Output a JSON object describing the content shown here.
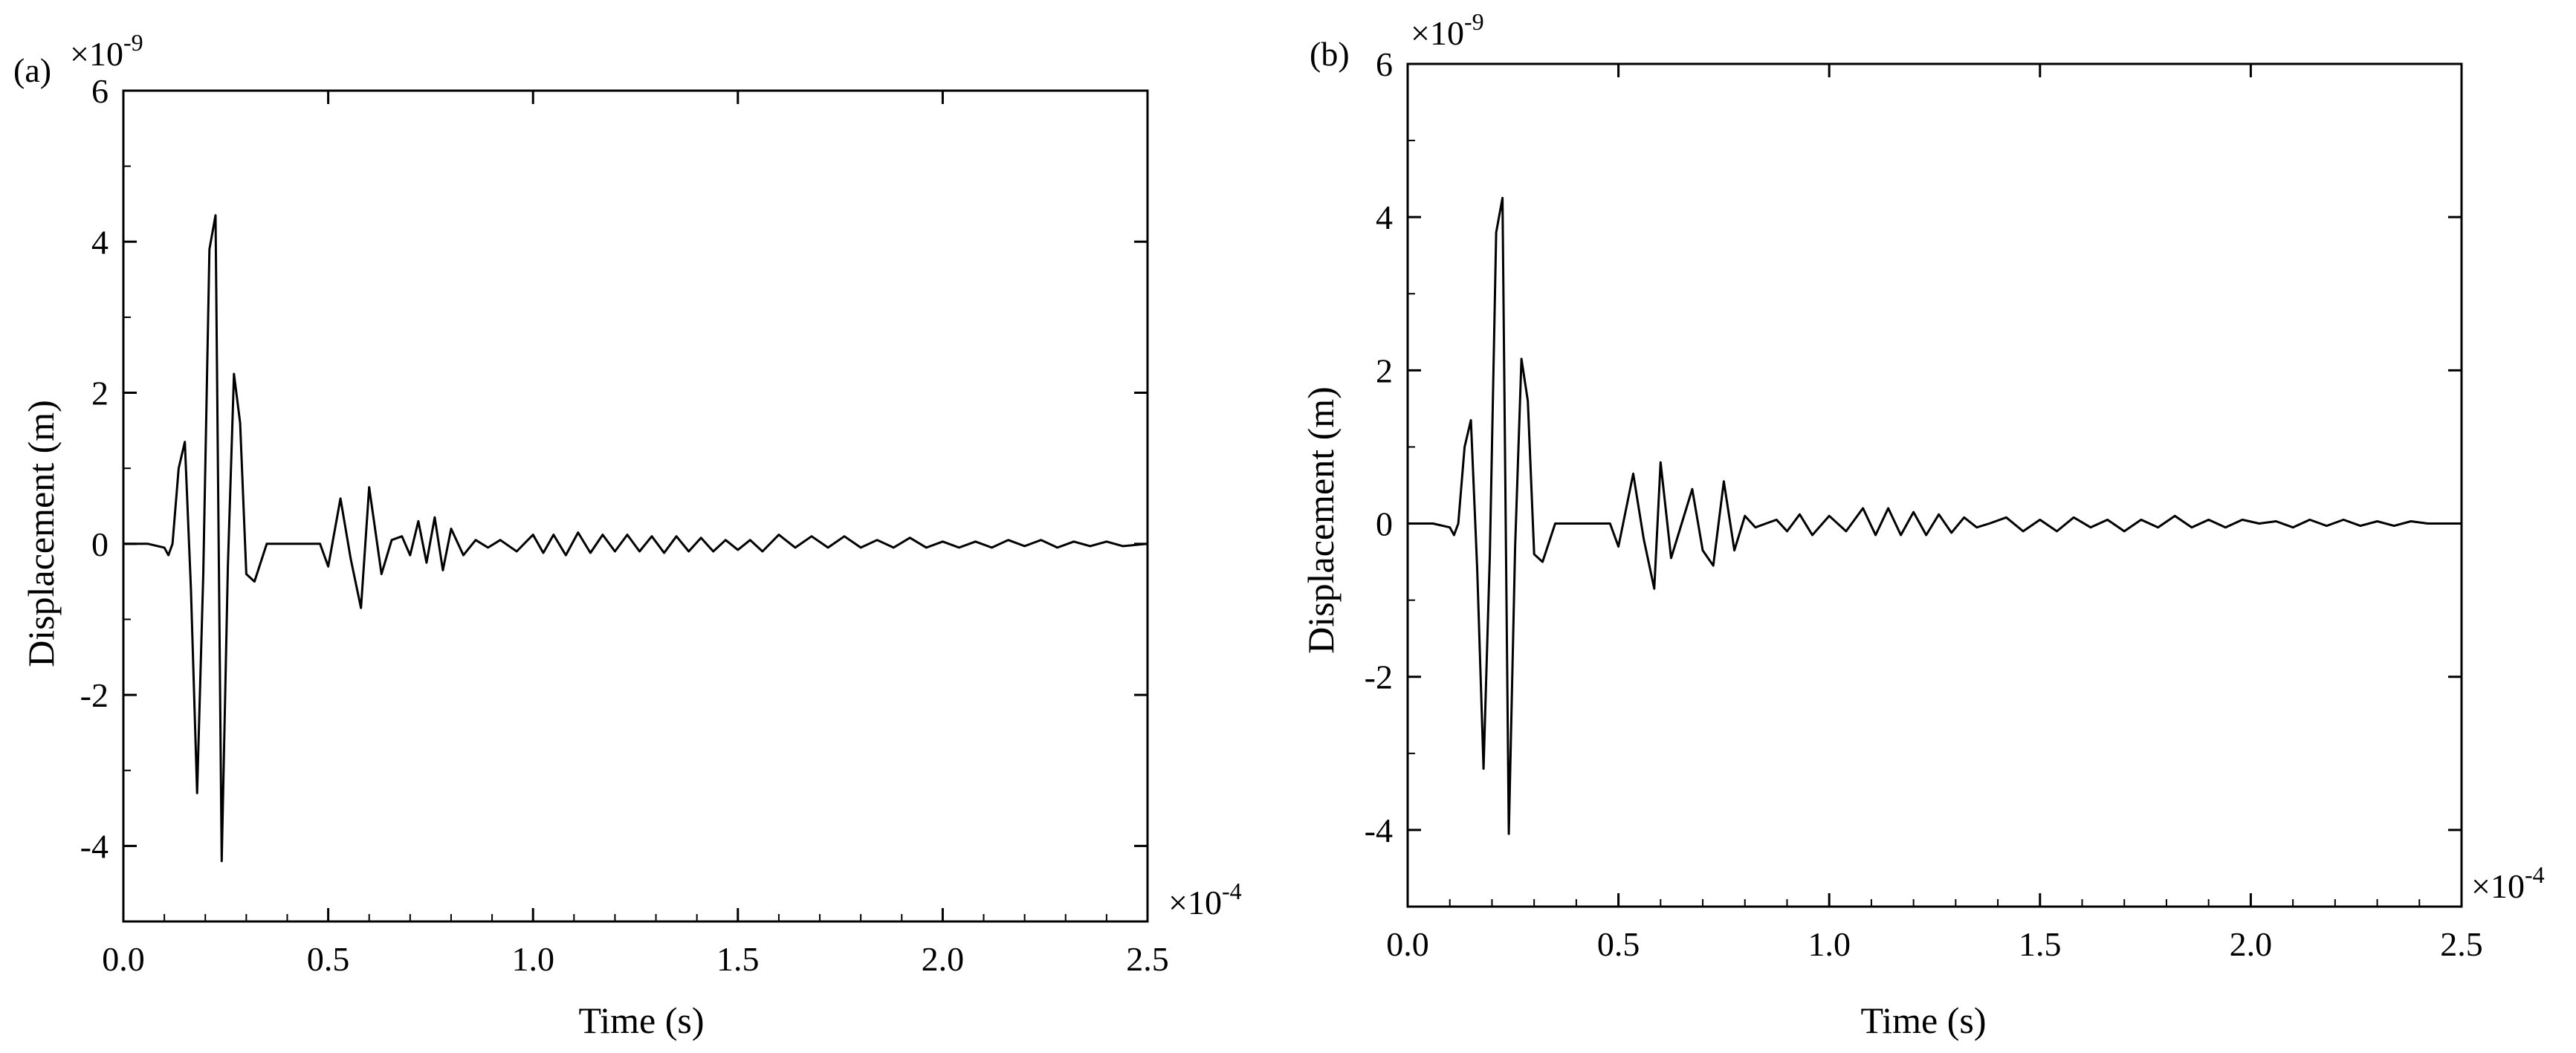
{
  "chart_data": [
    {
      "type": "line",
      "panel_label": "(a)",
      "xlabel": "Time (s)",
      "ylabel": "Displacement (m)",
      "x_multiplier": "×10",
      "x_exponent": "-4",
      "y_multiplier": "×10",
      "y_exponent": "-9",
      "xlim": [
        0,
        2.5
      ],
      "ylim": [
        -5,
        6
      ],
      "x_ticks": [
        "0.0",
        "0.5",
        "1.0",
        "1.5",
        "2.0",
        "2.5"
      ],
      "y_ticks": [
        "-4",
        "-2",
        "0",
        "2",
        "4",
        "6"
      ],
      "grid": false,
      "color": "#000000",
      "series": [
        {
          "x": [
            0.0,
            0.06,
            0.1,
            0.11,
            0.12,
            0.135,
            0.15,
            0.165,
            0.18,
            0.195,
            0.21,
            0.225,
            0.24,
            0.255,
            0.27,
            0.285,
            0.3,
            0.32,
            0.35,
            0.4,
            0.45,
            0.48,
            0.5,
            0.53,
            0.555,
            0.58,
            0.6,
            0.63,
            0.655,
            0.68,
            0.7,
            0.72,
            0.74,
            0.76,
            0.78,
            0.8,
            0.83,
            0.86,
            0.89,
            0.92,
            0.96,
            1.0,
            1.025,
            1.05,
            1.08,
            1.11,
            1.14,
            1.17,
            1.2,
            1.23,
            1.26,
            1.29,
            1.32,
            1.35,
            1.38,
            1.41,
            1.44,
            1.47,
            1.5,
            1.53,
            1.56,
            1.6,
            1.64,
            1.68,
            1.72,
            1.76,
            1.8,
            1.84,
            1.88,
            1.92,
            1.96,
            2.0,
            2.04,
            2.08,
            2.12,
            2.16,
            2.2,
            2.24,
            2.28,
            2.32,
            2.36,
            2.4,
            2.44,
            2.5
          ],
          "y": [
            0.0,
            0.0,
            -0.05,
            -0.15,
            0.0,
            1.0,
            1.35,
            -0.6,
            -3.3,
            -0.4,
            3.9,
            4.35,
            -4.2,
            -0.3,
            2.25,
            1.6,
            -0.4,
            -0.5,
            0.0,
            0.0,
            0.0,
            0.0,
            -0.3,
            0.6,
            -0.2,
            -0.85,
            0.75,
            -0.4,
            0.05,
            0.1,
            -0.15,
            0.3,
            -0.25,
            0.35,
            -0.35,
            0.2,
            -0.15,
            0.05,
            -0.05,
            0.05,
            -0.1,
            0.12,
            -0.12,
            0.12,
            -0.15,
            0.15,
            -0.12,
            0.12,
            -0.1,
            0.12,
            -0.1,
            0.1,
            -0.12,
            0.1,
            -0.1,
            0.08,
            -0.1,
            0.05,
            -0.08,
            0.05,
            -0.1,
            0.12,
            -0.05,
            0.1,
            -0.05,
            0.1,
            -0.05,
            0.05,
            -0.05,
            0.08,
            -0.05,
            0.03,
            -0.05,
            0.03,
            -0.05,
            0.05,
            -0.03,
            0.05,
            -0.05,
            0.03,
            -0.03,
            0.03,
            -0.03,
            0.0
          ]
        }
      ]
    },
    {
      "type": "line",
      "panel_label": "(b)",
      "xlabel": "Time (s)",
      "ylabel": "Displacement (m)",
      "x_multiplier": "×10",
      "x_exponent": "-4",
      "y_multiplier": "×10",
      "y_exponent": "-9",
      "xlim": [
        0,
        2.5
      ],
      "ylim": [
        -5,
        6
      ],
      "x_ticks": [
        "0.0",
        "0.5",
        "1.0",
        "1.5",
        "2.0",
        "2.5"
      ],
      "y_ticks": [
        "-4",
        "-2",
        "0",
        "2",
        "4",
        "6"
      ],
      "grid": false,
      "color": "#000000",
      "series": [
        {
          "x": [
            0.0,
            0.06,
            0.1,
            0.11,
            0.12,
            0.135,
            0.15,
            0.165,
            0.18,
            0.195,
            0.21,
            0.225,
            0.24,
            0.255,
            0.27,
            0.285,
            0.3,
            0.32,
            0.35,
            0.4,
            0.45,
            0.48,
            0.5,
            0.535,
            0.56,
            0.585,
            0.6,
            0.625,
            0.65,
            0.675,
            0.7,
            0.725,
            0.75,
            0.775,
            0.8,
            0.825,
            0.85,
            0.875,
            0.9,
            0.93,
            0.96,
            1.0,
            1.04,
            1.08,
            1.11,
            1.14,
            1.17,
            1.2,
            1.23,
            1.26,
            1.29,
            1.32,
            1.35,
            1.38,
            1.42,
            1.46,
            1.5,
            1.54,
            1.58,
            1.62,
            1.66,
            1.7,
            1.74,
            1.78,
            1.82,
            1.86,
            1.9,
            1.94,
            1.98,
            2.02,
            2.06,
            2.1,
            2.14,
            2.18,
            2.22,
            2.26,
            2.3,
            2.34,
            2.38,
            2.42,
            2.46,
            2.5
          ],
          "y": [
            0.0,
            0.0,
            -0.05,
            -0.15,
            0.0,
            1.0,
            1.35,
            -0.6,
            -3.2,
            -0.4,
            3.8,
            4.25,
            -4.05,
            -0.3,
            2.15,
            1.6,
            -0.4,
            -0.5,
            0.0,
            0.0,
            0.0,
            0.0,
            -0.3,
            0.65,
            -0.2,
            -0.85,
            0.8,
            -0.45,
            0.0,
            0.45,
            -0.35,
            -0.55,
            0.55,
            -0.35,
            0.1,
            -0.05,
            0.0,
            0.05,
            -0.1,
            0.12,
            -0.15,
            0.1,
            -0.1,
            0.2,
            -0.15,
            0.2,
            -0.15,
            0.15,
            -0.15,
            0.12,
            -0.12,
            0.08,
            -0.05,
            0.0,
            0.08,
            -0.1,
            0.05,
            -0.1,
            0.08,
            -0.05,
            0.05,
            -0.1,
            0.05,
            -0.05,
            0.1,
            -0.05,
            0.05,
            -0.05,
            0.05,
            0.0,
            0.03,
            -0.05,
            0.05,
            -0.03,
            0.05,
            -0.03,
            0.03,
            -0.03,
            0.03,
            0.0,
            0.0,
            0.0
          ]
        }
      ]
    }
  ]
}
